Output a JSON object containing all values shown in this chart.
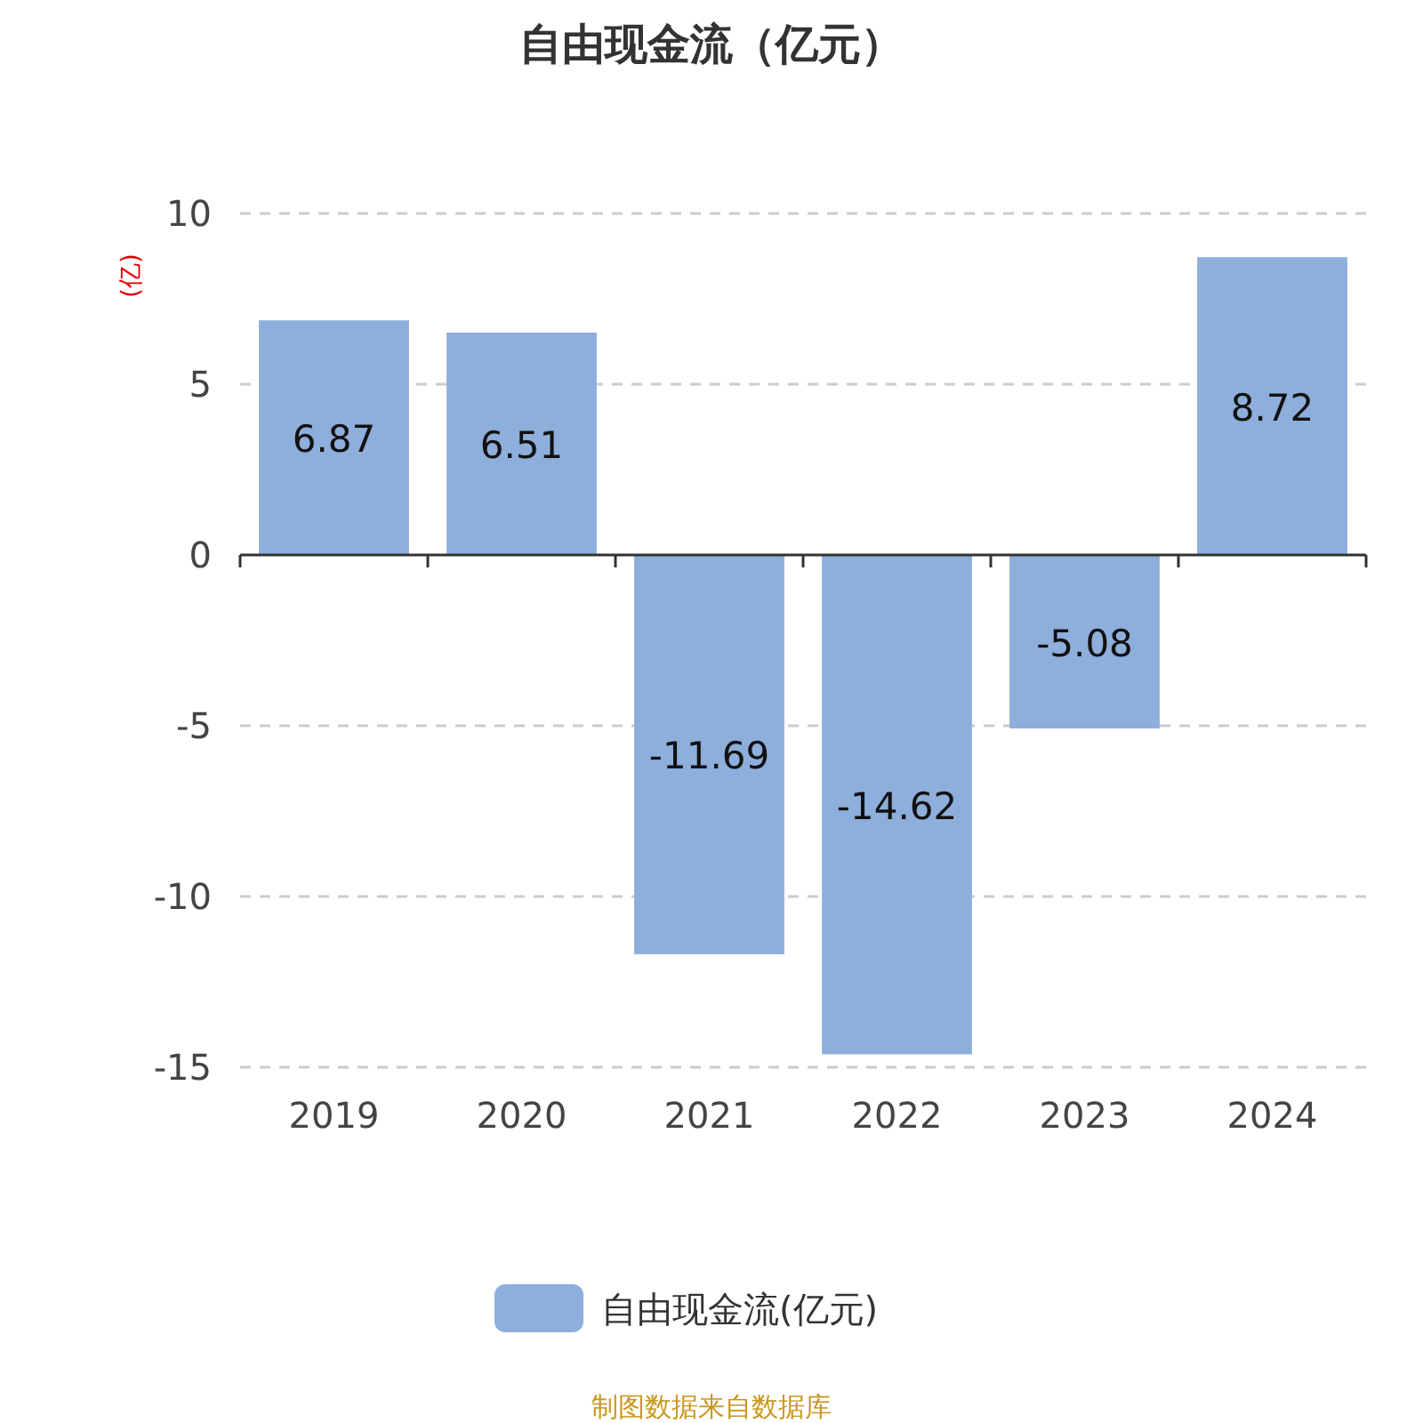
{
  "chart_data": {
    "type": "bar",
    "title": "自由现金流（亿元）",
    "ylabel": "(亿)",
    "categories": [
      "2019",
      "2020",
      "2021",
      "2022",
      "2023",
      "2024"
    ],
    "series": [
      {
        "name": "自由现金流(亿元)",
        "color": "#8eaedb",
        "values": [
          6.87,
          6.51,
          -11.69,
          -14.62,
          -5.08,
          8.72
        ]
      }
    ],
    "ylim": [
      -15,
      10
    ],
    "yticks": [
      -15,
      -10,
      -5,
      0,
      5,
      10
    ],
    "grid": "y",
    "legend": "bottom",
    "data_labels": true,
    "annotations": [
      "制图数据来自数据库"
    ]
  }
}
